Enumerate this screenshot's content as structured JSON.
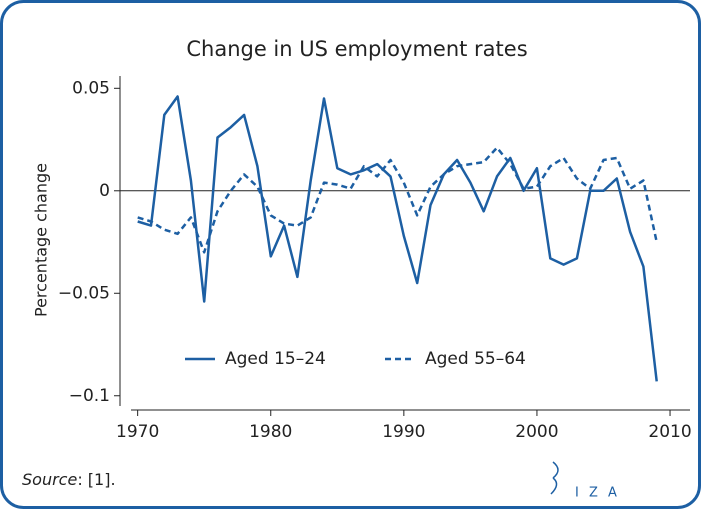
{
  "chart_data": {
    "type": "line",
    "title": "Change in US employment rates",
    "ylabel": "Percentage change",
    "x": [
      1970,
      1971,
      1972,
      1973,
      1974,
      1975,
      1976,
      1977,
      1978,
      1979,
      1980,
      1981,
      1982,
      1983,
      1984,
      1985,
      1986,
      1987,
      1988,
      1989,
      1990,
      1991,
      1992,
      1993,
      1994,
      1995,
      1996,
      1997,
      1998,
      1999,
      2000,
      2001,
      2002,
      2003,
      2004,
      2005,
      2006,
      2007,
      2008,
      2009
    ],
    "series": [
      {
        "name": "Aged 15–24",
        "color": "#1d5fa3",
        "dash": "solid",
        "values": [
          -0.015,
          -0.017,
          0.037,
          0.046,
          0.005,
          -0.054,
          0.026,
          0.031,
          0.037,
          0.012,
          -0.032,
          -0.017,
          -0.042,
          0.005,
          0.045,
          0.011,
          0.008,
          0.01,
          0.013,
          0.007,
          -0.022,
          -0.045,
          -0.007,
          0.008,
          0.015,
          0.004,
          -0.01,
          0.007,
          0.016,
          0.0,
          0.011,
          -0.033,
          -0.036,
          -0.033,
          0.0,
          0.0,
          0.006,
          -0.02,
          -0.037,
          -0.093
        ]
      },
      {
        "name": "Aged 55–64",
        "color": "#1d5fa3",
        "dash": "dashed",
        "values": [
          -0.013,
          -0.015,
          -0.019,
          -0.021,
          -0.013,
          -0.03,
          -0.01,
          0.0,
          0.008,
          0.002,
          -0.012,
          -0.016,
          -0.017,
          -0.013,
          0.004,
          0.003,
          0.001,
          0.012,
          0.007,
          0.015,
          0.004,
          -0.012,
          0.002,
          0.008,
          0.012,
          0.013,
          0.014,
          0.021,
          0.013,
          0.001,
          0.002,
          0.012,
          0.016,
          0.006,
          0.001,
          0.015,
          0.016,
          0.001,
          0.005,
          -0.025
        ]
      }
    ],
    "xlim": [
      1969.5,
      2011.5
    ],
    "xticks": [
      1970,
      1980,
      1990,
      2000,
      2010
    ],
    "ylim": [
      -0.105,
      0.056
    ],
    "yticks": [
      {
        "value": -0.1,
        "label": "−0.1"
      },
      {
        "value": -0.05,
        "label": "−0.05"
      },
      0,
      0.05
    ],
    "reference_line": 0,
    "grid": false,
    "legend": "bottom",
    "source_label": "Source",
    "source_text": ": [1].",
    "logo": "I Z A"
  }
}
